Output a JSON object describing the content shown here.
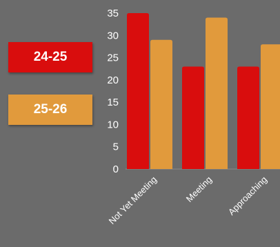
{
  "chart_data": {
    "type": "bar",
    "categories": [
      "Not Yet Meeting",
      "Meeting",
      "Approaching"
    ],
    "series": [
      {
        "name": "24-25",
        "values": [
          35,
          23,
          23
        ],
        "color": "#d90d0d"
      },
      {
        "name": "25-26",
        "values": [
          29,
          34,
          28
        ],
        "color": "#e19a3c"
      }
    ],
    "yticks": [
      "0",
      "5",
      "10",
      "15",
      "20",
      "25",
      "30",
      "35"
    ],
    "ylim": [
      0,
      35
    ],
    "grid": false,
    "legend_placement": "left"
  },
  "colors": {
    "background": "#6b6b6b",
    "text": "#ffffff"
  }
}
